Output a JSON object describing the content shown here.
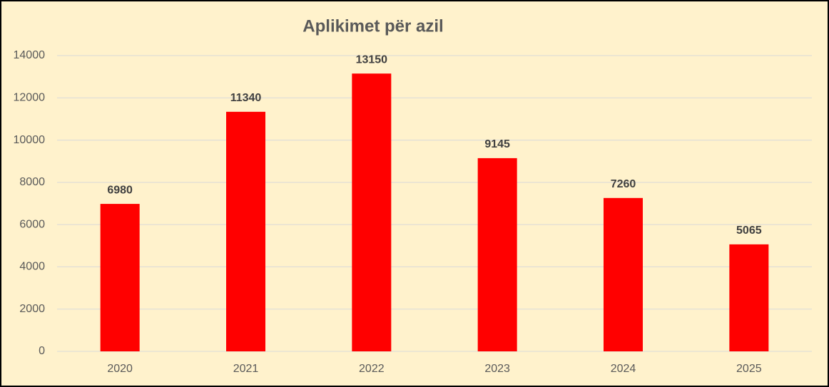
{
  "chart_data": {
    "type": "bar",
    "title": "Aplikimet për azil",
    "categories": [
      "2020",
      "2021",
      "2022",
      "2023",
      "2024",
      "2025"
    ],
    "values": [
      6980,
      11340,
      13150,
      9145,
      7260,
      5065
    ],
    "color": "#ff0000",
    "ylim": [
      0,
      14000
    ],
    "yticks": [
      0,
      2000,
      4000,
      6000,
      8000,
      10000,
      12000,
      14000
    ],
    "grid": true
  }
}
